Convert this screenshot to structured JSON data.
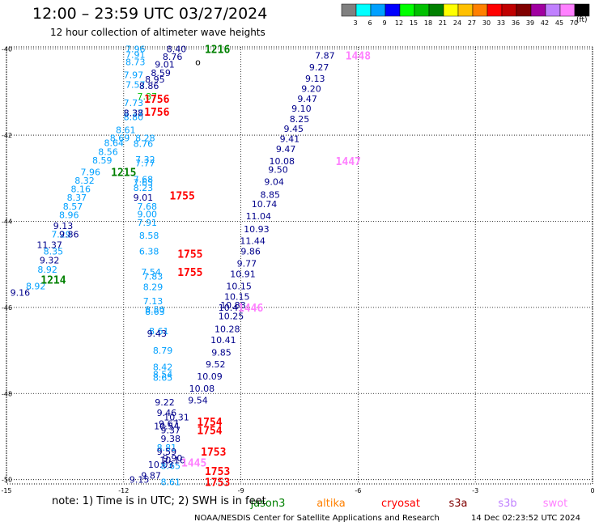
{
  "header": {
    "title": "12:00 – 23:59 UTC 03/27/2024",
    "subtitle": "12 hour collection of altimeter wave heights"
  },
  "colorbar": {
    "unit": "(ft)",
    "bins": [
      {
        "label": "3",
        "color": "#808080"
      },
      {
        "label": "6",
        "color": "#00ffff"
      },
      {
        "label": "9",
        "color": "#00a0ff"
      },
      {
        "label": "12",
        "color": "#0000ff"
      },
      {
        "label": "15",
        "color": "#00ff00"
      },
      {
        "label": "18",
        "color": "#00c000"
      },
      {
        "label": "21",
        "color": "#008000"
      },
      {
        "label": "24",
        "color": "#ffff00"
      },
      {
        "label": "27",
        "color": "#ffc000"
      },
      {
        "label": "30",
        "color": "#ff8000"
      },
      {
        "label": "33",
        "color": "#ff0000"
      },
      {
        "label": "36",
        "color": "#c00000"
      },
      {
        "label": "39",
        "color": "#800000"
      },
      {
        "label": "42",
        "color": "#a000a0"
      },
      {
        "label": "45",
        "color": "#c080ff"
      },
      {
        "label": "70",
        "color": "#ff80ff"
      },
      {
        "label": "",
        "color": "#000000"
      }
    ]
  },
  "footer": {
    "note": "note:  1) Time is in UTC; 2) SWH is in feet",
    "credit": "NOAA/NESDIS Center for Satellite Applications and Research",
    "generated": "14 Dec 02:23:52 UTC 2024"
  },
  "legend": [
    {
      "name": "jason3",
      "color": "#008000"
    },
    {
      "name": "altika",
      "color": "#ff8000"
    },
    {
      "name": "cryosat",
      "color": "#ff0000"
    },
    {
      "name": "s3a",
      "color": "#800000"
    },
    {
      "name": "s3b",
      "color": "#c080ff"
    },
    {
      "name": "swot",
      "color": "#ff80ff"
    }
  ],
  "chart_data": {
    "type": "scatter",
    "xlim": [
      -15,
      0
    ],
    "ylim": [
      -50.1,
      -39.95
    ],
    "xticks": [
      {
        "v": -15,
        "t": "-15"
      },
      {
        "v": -12,
        "t": "-12"
      },
      {
        "v": -9,
        "t": "-9"
      },
      {
        "v": -6,
        "t": "-6"
      },
      {
        "v": -3,
        "t": "-3"
      },
      {
        "v": 0,
        "t": "0"
      }
    ],
    "yticks": [
      {
        "v": -40,
        "t": "-40"
      },
      {
        "v": -42,
        "t": "-42"
      },
      {
        "v": -44,
        "t": "-44"
      },
      {
        "v": -46,
        "t": "-46"
      },
      {
        "v": -48,
        "t": "-48"
      },
      {
        "v": -50,
        "t": "-50"
      }
    ],
    "grid": true,
    "tracks": [
      {
        "color": "#00a0ff",
        "points": [
          [
            "7.96",
            -11.7,
            -40.0
          ],
          [
            "7.91",
            -11.7,
            -40.13
          ],
          [
            "8.73",
            -11.7,
            -40.3
          ],
          [
            "7.97",
            -11.75,
            -40.6
          ],
          [
            "7.57",
            -11.7,
            -40.82
          ],
          [
            "7.73",
            -11.75,
            -41.25
          ],
          [
            "8.37",
            -11.75,
            -41.48
          ],
          [
            "8.80",
            -11.75,
            -41.58
          ],
          [
            "8.61",
            -11.95,
            -41.88
          ],
          [
            "8.69",
            -12.1,
            -42.06
          ],
          [
            "8.28",
            -11.45,
            -42.06
          ],
          [
            "8.64",
            -12.25,
            -42.18
          ],
          [
            "8.76",
            -11.5,
            -42.2
          ],
          [
            "8.56",
            -12.4,
            -42.38
          ],
          [
            "8.59",
            -12.55,
            -42.58
          ],
          [
            "7.32",
            -11.45,
            -42.56
          ],
          [
            "7.77",
            -11.45,
            -42.65
          ],
          [
            "7.96",
            -12.85,
            -42.85
          ],
          [
            "8.32",
            -13.0,
            -43.05
          ],
          [
            "7.68",
            -11.5,
            -43.02
          ],
          [
            "7.65",
            -11.5,
            -43.1
          ],
          [
            "8.16",
            -13.1,
            -43.25
          ],
          [
            "8.23",
            -11.5,
            -43.22
          ],
          [
            "8.37",
            -13.2,
            -43.45
          ],
          [
            "8.57",
            -13.3,
            -43.65
          ],
          [
            "8.96",
            -13.4,
            -43.85
          ],
          [
            "7.68",
            -11.4,
            -43.65
          ],
          [
            "9.00",
            -11.4,
            -43.83
          ],
          [
            "7.91",
            -11.4,
            -44.03
          ],
          [
            "7.29",
            -13.6,
            -44.3
          ],
          [
            "8.35",
            -13.8,
            -44.7
          ],
          [
            "8.58",
            -11.35,
            -44.33
          ],
          [
            "6.38",
            -11.35,
            -44.7
          ],
          [
            "8.92",
            -13.95,
            -45.12
          ],
          [
            "8.92",
            -14.25,
            -45.5
          ],
          [
            "7.54",
            -11.3,
            -45.18
          ],
          [
            "7.83",
            -11.25,
            -45.28
          ],
          [
            "8.29",
            -11.25,
            -45.52
          ],
          [
            "7.13",
            -11.25,
            -45.85
          ],
          [
            "8.50",
            -11.2,
            -46.05
          ],
          [
            "8.63",
            -11.2,
            -46.1
          ],
          [
            "8.61",
            -11.1,
            -46.55
          ],
          [
            "8.79",
            -11.0,
            -47.0
          ],
          [
            "8.42",
            -11.0,
            -47.38
          ],
          [
            "8.54",
            -11.0,
            -47.55
          ],
          [
            "8.65",
            -11.0,
            -47.63
          ],
          [
            "8.81",
            -10.9,
            -49.25
          ],
          [
            "8.65",
            -10.8,
            -49.68
          ],
          [
            "8.61",
            -10.8,
            -50.05
          ]
        ]
      },
      {
        "color": "#00008b",
        "points": [
          [
            "8.40",
            -10.65,
            -40.0
          ],
          [
            "8.76",
            -10.75,
            -40.18
          ],
          [
            "9.01",
            -10.95,
            -40.35
          ],
          [
            "8.59",
            -11.05,
            -40.55
          ],
          [
            "8.95",
            -11.2,
            -40.7
          ],
          [
            "8.86",
            -11.35,
            -40.85
          ],
          [
            "8.38",
            -11.75,
            -41.48
          ],
          [
            "9.32",
            -13.9,
            -44.9
          ],
          [
            "9.16",
            -14.65,
            -45.65
          ],
          [
            "9.13",
            -13.55,
            -44.1
          ],
          [
            "9.86",
            -13.4,
            -44.3
          ],
          [
            "11.37",
            -13.9,
            -44.55
          ],
          [
            "9.01",
            -11.5,
            -43.45
          ],
          [
            "9.43",
            -11.15,
            -46.6
          ],
          [
            "9.22",
            -10.95,
            -48.2
          ],
          [
            "9.46",
            -10.9,
            -48.45
          ],
          [
            "9.67",
            -10.85,
            -48.7
          ],
          [
            "9.37",
            -10.8,
            -48.85
          ],
          [
            "9.38",
            -10.8,
            -49.05
          ],
          [
            "9.59",
            -10.9,
            -49.35
          ],
          [
            "9.90",
            -10.75,
            -49.5
          ],
          [
            "10.03",
            -11.05,
            -49.65
          ],
          [
            "9.87",
            -11.3,
            -49.9
          ],
          [
            "9.15",
            -11.6,
            -50.0
          ],
          [
            "10.31",
            -10.65,
            -48.55
          ],
          [
            "10.54",
            -10.9,
            -48.76
          ],
          [
            "10.16",
            -10.75,
            -49.55
          ],
          [
            "7.87",
            -6.85,
            -40.15
          ],
          [
            "9.27",
            -7.0,
            -40.42
          ],
          [
            "9.13",
            -7.1,
            -40.68
          ],
          [
            "9.20",
            -7.2,
            -40.92
          ],
          [
            "9.47",
            -7.3,
            -41.15
          ],
          [
            "9.10",
            -7.45,
            -41.38
          ],
          [
            "8.25",
            -7.5,
            -41.62
          ],
          [
            "9.45",
            -7.65,
            -41.85
          ],
          [
            "9.41",
            -7.75,
            -42.08
          ],
          [
            "9.47",
            -7.85,
            -42.32
          ],
          [
            "10.08",
            -7.95,
            -42.6
          ],
          [
            "9.50",
            -8.05,
            -42.8
          ],
          [
            "9.04",
            -8.15,
            -43.08
          ],
          [
            "8.85",
            -8.25,
            -43.38
          ],
          [
            "10.74",
            -8.4,
            -43.6
          ],
          [
            "11.04",
            -8.55,
            -43.88
          ],
          [
            "10.93",
            -8.6,
            -44.18
          ],
          [
            "11.44",
            -8.7,
            -44.45
          ],
          [
            "9.86",
            -8.75,
            -44.7
          ],
          [
            "9.77",
            -8.85,
            -44.98
          ],
          [
            "10.91",
            -8.95,
            -45.22
          ],
          [
            "10.15",
            -9.05,
            -45.5
          ],
          [
            "10.15",
            -9.1,
            -45.75
          ],
          [
            "10.88",
            -9.2,
            -45.95
          ],
          [
            "10.41",
            -9.25,
            -46.0
          ],
          [
            "10.25",
            -9.25,
            -46.2
          ],
          [
            "10.28",
            -9.35,
            -46.5
          ],
          [
            "10.41",
            -9.45,
            -46.75
          ],
          [
            "9.85",
            -9.5,
            -47.05
          ],
          [
            "9.52",
            -9.65,
            -47.32
          ],
          [
            "10.09",
            -9.8,
            -47.6
          ],
          [
            "10.08",
            -10.0,
            -47.88
          ],
          [
            "9.54",
            -10.1,
            -48.15
          ]
        ]
      },
      {
        "color": "#000000",
        "points": [
          [
            "o",
            -10.1,
            -40.3
          ]
        ]
      },
      {
        "color": "#00c000",
        "points": [
          [
            "7.87",
            -11.4,
            -41.1
          ]
        ]
      }
    ],
    "pass_labels": [
      {
        "text": "1216",
        "x": -9.6,
        "y": -40.0,
        "color": "#008000"
      },
      {
        "text": "1215",
        "x": -12.0,
        "y": -42.85,
        "color": "#008000"
      },
      {
        "text": "1214",
        "x": -13.8,
        "y": -45.35,
        "color": "#008000"
      },
      {
        "text": "1756",
        "x": -11.15,
        "y": -41.15,
        "color": "#ff0000"
      },
      {
        "text": "1756",
        "x": -11.15,
        "y": -41.45,
        "color": "#ff0000"
      },
      {
        "text": "1755",
        "x": -10.5,
        "y": -43.4,
        "color": "#ff0000"
      },
      {
        "text": "1755",
        "x": -10.3,
        "y": -44.75,
        "color": "#ff0000"
      },
      {
        "text": "1755",
        "x": -10.3,
        "y": -45.18,
        "color": "#ff0000"
      },
      {
        "text": "1754",
        "x": -9.8,
        "y": -48.65,
        "color": "#ff0000"
      },
      {
        "text": "1754",
        "x": -9.8,
        "y": -48.85,
        "color": "#ff0000"
      },
      {
        "text": "1753",
        "x": -9.7,
        "y": -49.35,
        "color": "#ff0000"
      },
      {
        "text": "1753",
        "x": -9.6,
        "y": -49.8,
        "color": "#ff0000"
      },
      {
        "text": "1753",
        "x": -9.6,
        "y": -50.05,
        "color": "#ff0000"
      },
      {
        "text": "1448",
        "x": -6.0,
        "y": -40.15,
        "color": "#ff80ff"
      },
      {
        "text": "1447",
        "x": -6.25,
        "y": -42.6,
        "color": "#ff80ff"
      },
      {
        "text": "1446",
        "x": -8.75,
        "y": -46.0,
        "color": "#ff80ff"
      },
      {
        "text": "1445",
        "x": -10.2,
        "y": -49.6,
        "color": "#ff80ff"
      }
    ]
  }
}
